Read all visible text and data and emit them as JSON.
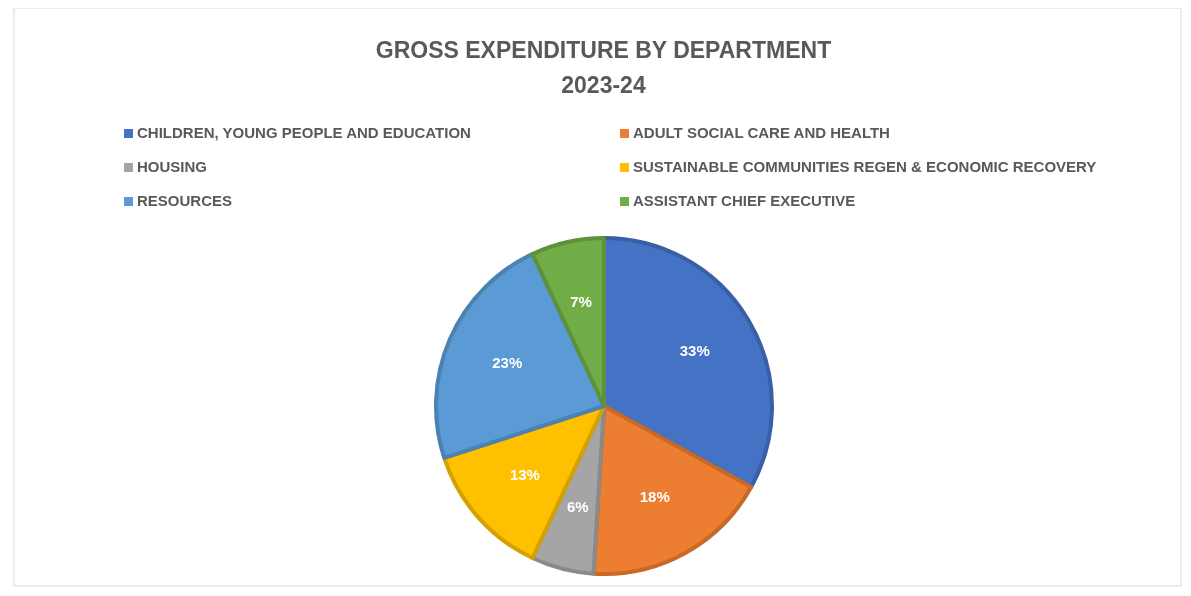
{
  "chart_data": {
    "type": "pie",
    "title": "GROSS EXPENDITURE BY DEPARTMENT",
    "subtitle": "2023-24",
    "categories": [
      "CHILDREN, YOUNG PEOPLE AND EDUCATION",
      "ADULT SOCIAL CARE AND HEALTH",
      "HOUSING",
      "SUSTAINABLE COMMUNITIES REGEN & ECONOMIC RECOVERY",
      "RESOURCES",
      "ASSISTANT CHIEF EXECUTIVE"
    ],
    "values": [
      33,
      18,
      6,
      13,
      23,
      7
    ],
    "colors": [
      "#4472c4",
      "#ed7d31",
      "#a5a5a5",
      "#ffc000",
      "#5b9bd5",
      "#70ad47"
    ],
    "value_labels": [
      "33%",
      "18%",
      "6%",
      "13%",
      "23%",
      "7%"
    ],
    "legend": "top"
  }
}
